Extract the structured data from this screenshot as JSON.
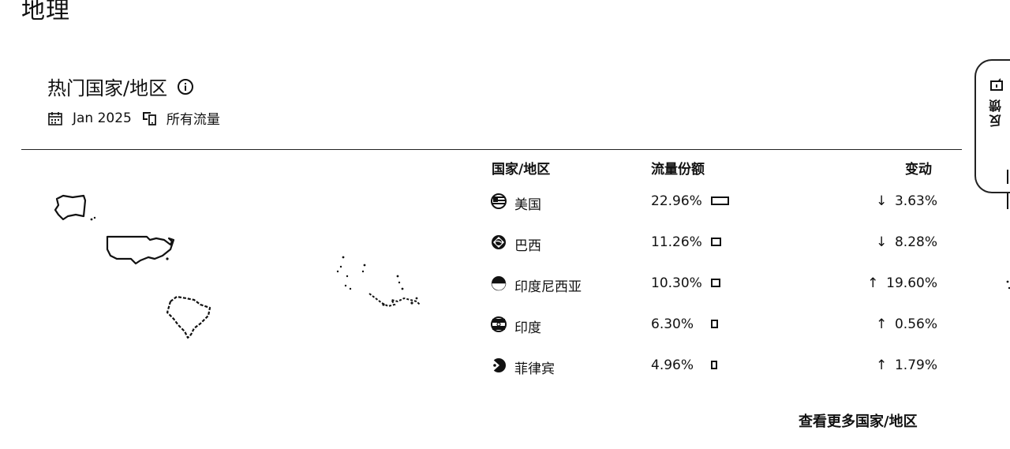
{
  "section": {
    "title": "地理"
  },
  "card": {
    "title": "热门国家/地区",
    "info_icon": "info-circle-icon",
    "date": "Jan 2025",
    "traffic_type": "所有流量"
  },
  "table": {
    "headers": {
      "country": "国家/地区",
      "share": "流量份额",
      "change": "变动"
    },
    "rows": [
      {
        "flag": "usa-flag-icon",
        "name": "美国",
        "share": "22.96%",
        "share_value": 22.96,
        "direction": "down",
        "arrow": "↓",
        "change": "3.63%"
      },
      {
        "flag": "brazil-flag-icon",
        "name": "巴西",
        "share": "11.26%",
        "share_value": 11.26,
        "direction": "down",
        "arrow": "↓",
        "change": "8.28%"
      },
      {
        "flag": "indonesia-flag-icon",
        "name": "印度尼西亚",
        "share": "10.30%",
        "share_value": 10.3,
        "direction": "up",
        "arrow": "↑",
        "change": "19.60%"
      },
      {
        "flag": "india-flag-icon",
        "name": "印度",
        "share": "6.30%",
        "share_value": 6.3,
        "direction": "up",
        "arrow": "↑",
        "change": "0.56%"
      },
      {
        "flag": "philippines-flag-icon",
        "name": "菲律宾",
        "share": "4.96%",
        "share_value": 4.96,
        "direction": "up",
        "arrow": "↑",
        "change": "1.79%"
      }
    ]
  },
  "more_link": "查看更多国家/地区",
  "feedback": {
    "label": "反馈",
    "icon": "feedback-icon"
  }
}
